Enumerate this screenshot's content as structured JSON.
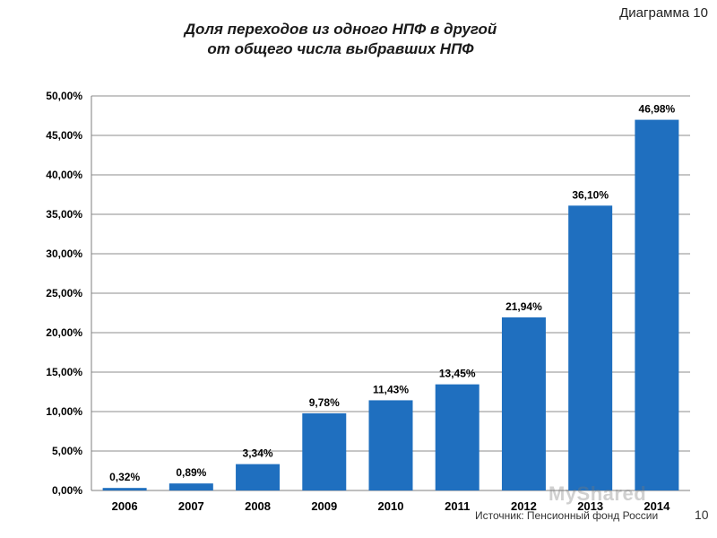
{
  "slide_label": "Диаграмма 10",
  "source_text": "Источник: Пенсионный фонд России",
  "page_number": "10",
  "watermark": "MyShared",
  "colors": {
    "bar": "#1f6fbf",
    "grid": "#8c8c8c",
    "axis": "#7f7f7f"
  },
  "chart_data": {
    "type": "bar",
    "title_lines": [
      "Доля переходов из одного НПФ в другой",
      "от общего числа выбравших НПФ"
    ],
    "categories": [
      "2006",
      "2007",
      "2008",
      "2009",
      "2010",
      "2011",
      "2012",
      "2013",
      "2014"
    ],
    "values": [
      0.32,
      0.89,
      3.34,
      9.78,
      11.43,
      13.45,
      21.94,
      36.1,
      46.98
    ],
    "value_labels": [
      "0,32%",
      "0,89%",
      "3,34%",
      "9,78%",
      "11,43%",
      "13,45%",
      "21,94%",
      "36,10%",
      "46,98%"
    ],
    "ylim": [
      0,
      50
    ],
    "yticks": [
      0,
      5,
      10,
      15,
      20,
      25,
      30,
      35,
      40,
      45,
      50
    ],
    "ytick_labels": [
      "0,00%",
      "5,00%",
      "10,00%",
      "15,00%",
      "20,00%",
      "25,00%",
      "30,00%",
      "35,00%",
      "40,00%",
      "45,00%",
      "50,00%"
    ],
    "grid": true,
    "legend": "none"
  }
}
